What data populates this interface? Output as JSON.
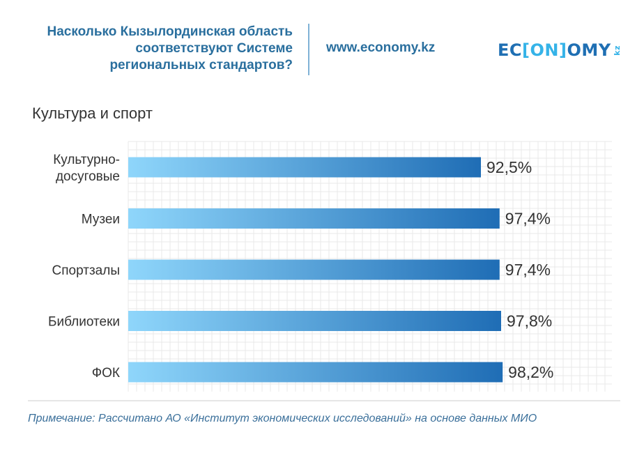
{
  "header": {
    "title_lines": [
      "Насколько Кызылординская область",
      "соответствуют Системе",
      "региональных стандартов?"
    ],
    "url": "www.economy.kz",
    "logo": {
      "part1": "EC",
      "part2": "[ON]",
      "part3": "OMY",
      "suffix": "kz"
    }
  },
  "section_title": "Культура и спорт",
  "colors": {
    "bar_start": "#8fd6fb",
    "bar_end": "#1f6db5",
    "header": "#2a6f9e"
  },
  "chart_data": {
    "type": "bar",
    "orientation": "horizontal",
    "title": "Культура и спорт",
    "categories": [
      [
        "Культурно-",
        "досуговые"
      ],
      [
        "Музеи"
      ],
      [
        "Спортзалы"
      ],
      [
        "Библиотеки"
      ],
      [
        "ФОК"
      ]
    ],
    "values": [
      92.5,
      97.4,
      97.4,
      97.8,
      98.2
    ],
    "value_labels": [
      "92,5%",
      "97,4%",
      "97,4%",
      "97,8%",
      "98,2%"
    ],
    "xlim": [
      0,
      100
    ],
    "grid": true,
    "legend": "none"
  },
  "note": "Примечание: Рассчитано АО «Институт экономических исследований» на основе данных МИО"
}
